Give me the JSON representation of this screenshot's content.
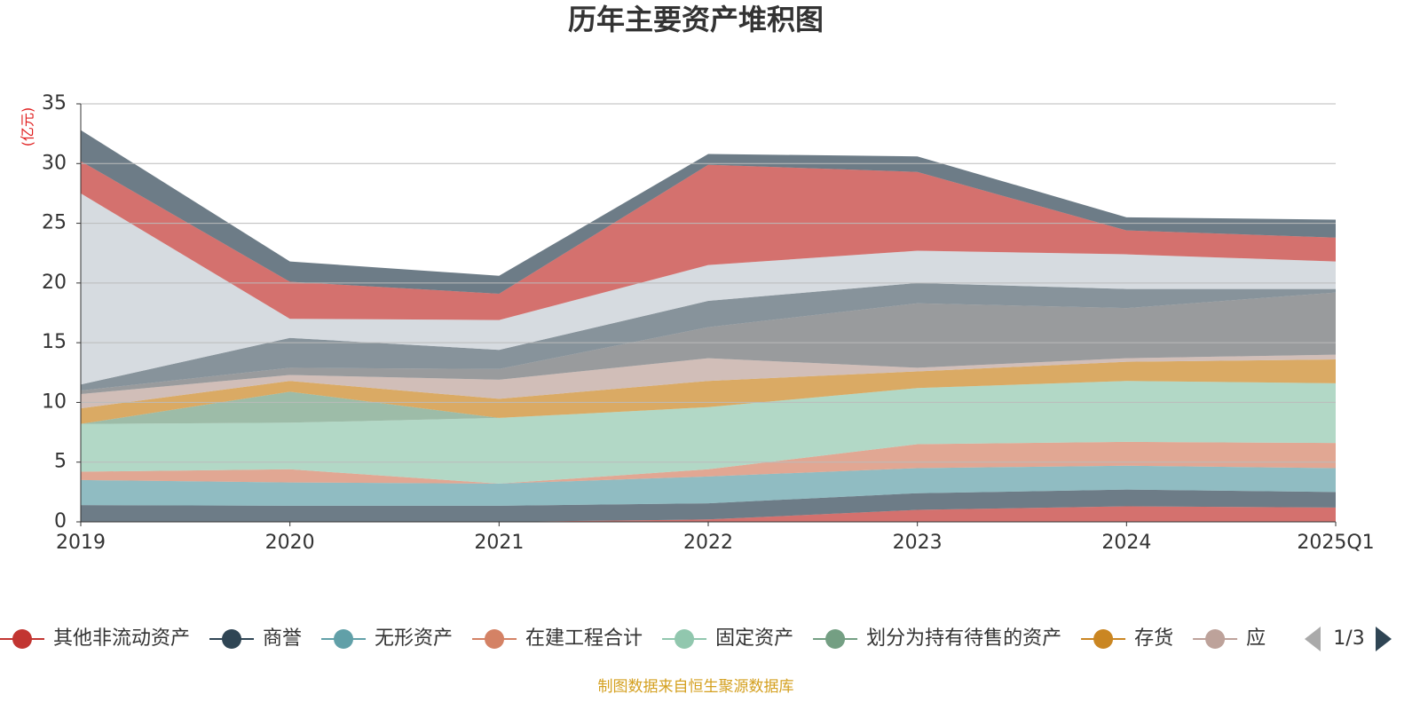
{
  "chart_data": {
    "type": "stacked-area",
    "title": "历年主要资产堆积图",
    "y_label": "(亿元)",
    "categories": [
      "2019",
      "2020",
      "2021",
      "2022",
      "2023",
      "2024",
      "2025Q1"
    ],
    "ylim": [
      0,
      35
    ],
    "yticks": [
      0,
      5,
      10,
      15,
      20,
      25,
      30,
      35
    ],
    "grid": true,
    "opacity": 0.7,
    "series": [
      {
        "name": "其他非流动资产",
        "color": "#c23531",
        "values": [
          0,
          0,
          0,
          0.2,
          1.0,
          1.3,
          1.2
        ]
      },
      {
        "name": "商誉",
        "color": "#2f4554",
        "values": [
          1.4,
          1.35,
          1.35,
          1.35,
          1.4,
          1.4,
          1.3
        ]
      },
      {
        "name": "无形资产",
        "color": "#61a0a8",
        "values": [
          2.1,
          1.95,
          1.85,
          2.25,
          2.1,
          2.0,
          2.0
        ]
      },
      {
        "name": "在建工程合计",
        "color": "#d48265",
        "values": [
          0.7,
          1.1,
          0,
          0.6,
          2.0,
          2.0,
          2.1
        ]
      },
      {
        "name": "固定资产",
        "color": "#91c7ae",
        "values": [
          4.0,
          3.9,
          5.5,
          5.2,
          4.7,
          5.1,
          5.0
        ]
      },
      {
        "name": "划分为持有待售的资产",
        "color": "#749f83",
        "values": [
          0,
          2.6,
          0,
          0,
          0,
          0,
          0
        ]
      },
      {
        "name": "存货",
        "color": "#ca8622",
        "values": [
          1.3,
          0.9,
          1.6,
          2.2,
          1.4,
          1.6,
          2.0
        ]
      },
      {
        "name": "应",
        "color": "#bda29a",
        "values": [
          1.2,
          0.5,
          1.6,
          1.9,
          0.3,
          0.3,
          0.4
        ]
      },
      {
        "color": "#6e7074",
        "values": [
          0.3,
          0.6,
          0.9,
          2.6,
          5.4,
          4.2,
          5.2
        ]
      },
      {
        "color": "#546570",
        "values": [
          0.5,
          2.5,
          1.6,
          2.2,
          1.7,
          1.6,
          0.3
        ]
      },
      {
        "color": "#c4ccd3",
        "values": [
          16.0,
          1.6,
          2.5,
          3.0,
          2.7,
          2.9,
          2.3
        ]
      },
      {
        "color": "#c23531",
        "values": [
          2.7,
          3.1,
          2.2,
          8.4,
          6.6,
          2.0,
          2.0
        ]
      },
      {
        "color": "#2f4554",
        "values": [
          2.6,
          1.7,
          1.5,
          0.9,
          1.3,
          1.1,
          1.5
        ]
      }
    ],
    "legend_page": "1/3",
    "source": "制图数据来自恒生聚源数据库"
  }
}
